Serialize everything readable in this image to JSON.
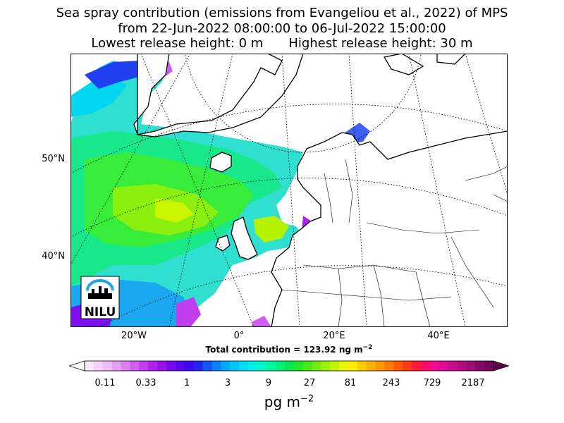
{
  "title": {
    "line1": "Sea spray contribution (emissions from Evangeliou et al., 2022) of MPS",
    "line2": "from 22-Jun-2022 08:00:00 to 06-Jul-2022 15:00:00",
    "lowest": "Lowest release height: 0 m",
    "highest": "Highest release height: 30 m"
  },
  "map": {
    "lat_labels": [
      "50°N",
      "40°N"
    ],
    "lon_labels": [
      "20°W",
      "0°",
      "20°E",
      "40°E"
    ],
    "logo_text": "NILU",
    "colors": {
      "land_bg": "#ffffff",
      "coast": "#000000",
      "graticule": "#000000"
    }
  },
  "total": {
    "text": "Total contribution = 123.92 ng m",
    "exponent": "−2"
  },
  "colorbar": {
    "ticks": [
      "0.11",
      "0.33",
      "1",
      "3",
      "9",
      "27",
      "81",
      "243",
      "729",
      "2187"
    ],
    "unit": "pg m",
    "unit_exponent": "−2",
    "colors": [
      "#fbeafb",
      "#f6d2f8",
      "#efbaf6",
      "#e79ef4",
      "#dd7ff2",
      "#d05ff0",
      "#c13ded",
      "#b020ea",
      "#9a10ec",
      "#7a08ee",
      "#5a04f0",
      "#3a08f2",
      "#2025f5",
      "#1555f7",
      "#0a80fa",
      "#00a8fb",
      "#00c6fb",
      "#00dcf5",
      "#00eee4",
      "#00f5c6",
      "#00f5a0",
      "#00f078",
      "#04ea50",
      "#20e82a",
      "#45e818",
      "#70ec10",
      "#9af008",
      "#c3f400",
      "#e8f800",
      "#ffea00",
      "#ffcc00",
      "#ffb000",
      "#ff9600",
      "#ff7a00",
      "#ff5800",
      "#ff3a10",
      "#ff1a40",
      "#ff0a6a",
      "#f4088c",
      "#e00a9a",
      "#c80c8e",
      "#b20c82",
      "#9c0a74",
      "#860866",
      "#700658"
    ]
  }
}
